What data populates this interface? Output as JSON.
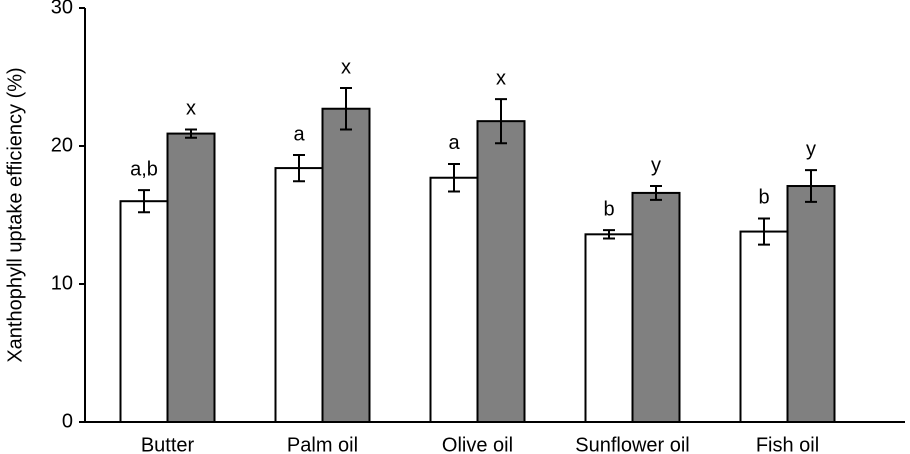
{
  "chart_data": {
    "type": "bar",
    "y_label": "Xanthophyll uptake efficiency (%)",
    "categories": [
      "Butter",
      "Palm oil",
      "Olive oil",
      "Sunflower oil",
      "Fish oil"
    ],
    "series": [
      {
        "color": "#ffffff",
        "values": [
          16.0,
          18.4,
          17.7,
          13.6,
          13.8
        ],
        "errors": [
          0.8,
          0.95,
          1.0,
          0.3,
          0.95
        ],
        "annotations": [
          "a,b",
          "a",
          "a",
          "b",
          "b"
        ]
      },
      {
        "color": "#808080",
        "values": [
          20.9,
          22.7,
          21.8,
          16.6,
          17.1
        ],
        "errors": [
          0.3,
          1.5,
          1.6,
          0.5,
          1.15
        ],
        "annotations": [
          "x",
          "x",
          "x",
          "y",
          "y"
        ]
      }
    ],
    "ylim": [
      0,
      30
    ],
    "yticks": [
      0,
      10,
      20,
      30
    ],
    "grid": false
  }
}
